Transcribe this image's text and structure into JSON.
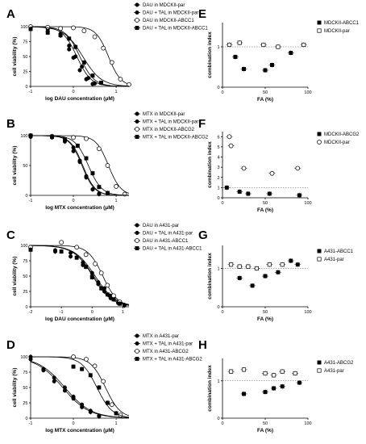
{
  "chart_data": [
    {
      "panel": "A",
      "type": "line",
      "xlabel": "log DAU concentration (μM)",
      "ylabel": "cell viability (%)",
      "xlim": [
        -1,
        1.3
      ],
      "ylim": [
        0,
        100
      ],
      "xticks": [
        "-1",
        "0",
        "1"
      ],
      "yticks": [
        "0",
        "25",
        "50",
        "75",
        "100"
      ],
      "legend": "top-right",
      "series": [
        {
          "name": "DAU in MDCKII-par",
          "marker": "filled-circle",
          "color": "#000000",
          "ic50": 0.15,
          "hill": 2.6,
          "x": [
            -1,
            -0.6,
            -0.3,
            -0.1,
            0.05,
            0.2,
            0.35,
            0.5
          ],
          "y": [
            100,
            96,
            88,
            68,
            50,
            33,
            14,
            5
          ]
        },
        {
          "name": "DAU + TAL in MDCKII-par",
          "marker": "filled-circle",
          "color": "#000000",
          "ic50": 0.08,
          "hill": 2.6,
          "x": [
            -1,
            -0.6,
            -0.3,
            -0.1,
            0.0,
            0.15,
            0.3,
            0.45
          ],
          "y": [
            98,
            92,
            85,
            62,
            48,
            27,
            12,
            4
          ]
        },
        {
          "name": "DAU in MDCKII-ABCC1",
          "marker": "open-circle",
          "color": "#000000",
          "ic50": 0.82,
          "hill": 3.0,
          "x": [
            -1,
            -0.6,
            -0.3,
            0.0,
            0.25,
            0.5,
            0.7,
            0.9,
            1.1,
            1.3
          ],
          "y": [
            100,
            99,
            97,
            98,
            93,
            83,
            64,
            40,
            12,
            3
          ]
        },
        {
          "name": "DAU + TAL in MDCKII-ABCC1",
          "marker": "filled-square",
          "color": "#000000",
          "ic50": 0.22,
          "hill": 2.0,
          "x": [
            -1,
            -0.6,
            -0.3,
            -0.1,
            0.05,
            0.25,
            0.45,
            0.65
          ],
          "y": [
            96,
            90,
            86,
            80,
            66,
            40,
            18,
            6
          ]
        }
      ]
    },
    {
      "panel": "B",
      "type": "line",
      "xlabel": "log MTX concentration (μM)",
      "ylabel": "cell viability (%)",
      "xlim": [
        -1,
        1.3
      ],
      "ylim": [
        0,
        100
      ],
      "xticks": [
        "-1",
        "0",
        "1"
      ],
      "yticks": [
        "0",
        "50",
        "100"
      ],
      "legend": "top-right",
      "series": [
        {
          "name": "MTX in MDCKII-par",
          "marker": "filled-circle",
          "color": "#000000",
          "ic50": 0.22,
          "hill": 3.0,
          "x": [
            -1,
            -0.5,
            -0.2,
            0.0,
            0.15,
            0.3,
            0.45,
            0.6
          ],
          "y": [
            100,
            98,
            92,
            80,
            58,
            32,
            10,
            3
          ]
        },
        {
          "name": "MTX + TAL in MDCKII-par",
          "marker": "filled-circle",
          "color": "#000000",
          "ic50": 0.2,
          "hill": 3.0,
          "x": [
            -1,
            -0.5,
            -0.2,
            0.0,
            0.15,
            0.3,
            0.45,
            0.6
          ],
          "y": [
            98,
            97,
            90,
            74,
            56,
            30,
            10,
            2
          ]
        },
        {
          "name": "MTX in MDCKII-ABCG2",
          "marker": "open-circle",
          "color": "#000000",
          "ic50": 0.82,
          "hill": 3.0,
          "x": [
            -1,
            -0.5,
            0.0,
            0.3,
            0.6,
            0.8,
            1.0,
            1.2
          ],
          "y": [
            100,
            99,
            97,
            95,
            78,
            50,
            15,
            2
          ]
        },
        {
          "name": "MTX + TAL in MDCKII-ABCG2",
          "marker": "filled-square",
          "color": "#000000",
          "ic50": 0.35,
          "hill": 2.8,
          "x": [
            -1,
            -0.5,
            -0.2,
            0.1,
            0.3,
            0.45,
            0.6,
            0.8
          ],
          "y": [
            100,
            98,
            94,
            83,
            62,
            37,
            14,
            4
          ]
        }
      ]
    },
    {
      "panel": "C",
      "type": "line",
      "xlabel": "log DAU concentration (μM)",
      "ylabel": "cell viability (%)",
      "xlim": [
        -2,
        1.2
      ],
      "ylim": [
        0,
        100
      ],
      "xticks": [
        "-2",
        "-1",
        "0",
        "1"
      ],
      "yticks": [
        "0",
        "25",
        "50",
        "75",
        "100"
      ],
      "legend": "top-right",
      "series": [
        {
          "name": "DAU in A431-par",
          "marker": "filled-circle",
          "color": "#000000",
          "ic50": 0.1,
          "hill": 1.3,
          "x": [
            -2,
            -1.2,
            -0.7,
            -0.3,
            0.0,
            0.2,
            0.4,
            0.6,
            0.85,
            1.05
          ],
          "y": [
            95,
            92,
            88,
            72,
            55,
            40,
            30,
            18,
            7,
            3
          ]
        },
        {
          "name": "DAU + TAL in A431-par",
          "marker": "filled-circle",
          "color": "#000000",
          "ic50": 0.05,
          "hill": 1.3,
          "x": [
            -2,
            -1.2,
            -0.7,
            -0.3,
            0.0,
            0.2,
            0.4,
            0.6,
            0.85,
            1.05
          ],
          "y": [
            96,
            90,
            82,
            68,
            50,
            37,
            25,
            14,
            6,
            2
          ]
        },
        {
          "name": "DAU in A431-ABCC1",
          "marker": "open-circle",
          "color": "#000000",
          "ic50": 0.35,
          "hill": 1.8,
          "x": [
            -2,
            -1.0,
            -0.5,
            -0.2,
            0.1,
            0.3,
            0.5,
            0.7,
            0.9
          ],
          "y": [
            97,
            105,
            97,
            85,
            70,
            55,
            35,
            18,
            8
          ]
        },
        {
          "name": "DAU + TAL in A431-ABCC1",
          "marker": "filled-square",
          "color": "#000000",
          "ic50": 0.02,
          "hill": 1.4,
          "x": [
            -2,
            -1.0,
            -0.5,
            -0.2,
            0.0,
            0.3,
            0.5,
            0.7,
            0.9
          ],
          "y": [
            93,
            90,
            80,
            65,
            48,
            30,
            20,
            12,
            5
          ]
        }
      ]
    },
    {
      "panel": "D",
      "type": "line",
      "xlabel": "log MTX concentration (μM)",
      "ylabel": "cell viability (%)",
      "xlim": [
        -1,
        1.3
      ],
      "ylim": [
        0,
        100
      ],
      "xticks": [
        "-1",
        "0",
        "1"
      ],
      "yticks": [
        "0",
        "25",
        "50",
        "75",
        "100"
      ],
      "legend": "top-right",
      "series": [
        {
          "name": "MTX in A431-par",
          "marker": "filled-circle",
          "color": "#000000",
          "ic50": -0.2,
          "hill": 1.4,
          "x": [
            -1,
            -0.7,
            -0.45,
            -0.2,
            0.0,
            0.2,
            0.4,
            0.6
          ],
          "y": [
            100,
            80,
            66,
            50,
            35,
            22,
            12,
            4
          ]
        },
        {
          "name": "MTX + TAL in A431-par",
          "marker": "filled-circle",
          "color": "#000000",
          "ic50": -0.25,
          "hill": 1.4,
          "x": [
            -1,
            -0.7,
            -0.45,
            -0.2,
            0.0,
            0.2,
            0.4,
            0.6
          ],
          "y": [
            96,
            78,
            60,
            45,
            32,
            18,
            10,
            3
          ]
        },
        {
          "name": "MTX in A431-ABCG2",
          "marker": "open-circle",
          "color": "#000000",
          "ic50": 0.75,
          "hill": 2.5,
          "x": [
            0.0,
            0.3,
            0.5,
            0.7,
            0.9,
            1.1
          ],
          "y": [
            100,
            96,
            85,
            60,
            22,
            5
          ]
        },
        {
          "name": "MTX + TAL in A431-ABCG2",
          "marker": "filled-square",
          "color": "#000000",
          "ic50": 0.55,
          "hill": 2.4,
          "x": [
            0.0,
            0.2,
            0.4,
            0.6,
            0.8,
            1.0
          ],
          "y": [
            84,
            80,
            70,
            50,
            25,
            8
          ]
        }
      ]
    },
    {
      "panel": "E",
      "type": "scatter",
      "xlabel": "FA (%)",
      "ylabel": "combination index",
      "xlim": [
        0,
        100
      ],
      "ylim": [
        0,
        1.6
      ],
      "xticks": [
        "0",
        "50",
        "100"
      ],
      "yticks": [
        "0",
        "1"
      ],
      "reference_line": 1,
      "legend": "top-right",
      "series": [
        {
          "name": "MDCKII-ABCC1",
          "marker": "filled-square",
          "color": "#000000",
          "x": [
            15,
            25,
            50,
            58,
            80
          ],
          "y": [
            0.75,
            0.45,
            0.42,
            0.55,
            0.85
          ]
        },
        {
          "name": "MDCKII-par",
          "marker": "open-square",
          "color": "#000000",
          "x": [
            8,
            20,
            48,
            65,
            95
          ],
          "y": [
            1.05,
            1.1,
            1.05,
            1.0,
            1.05
          ]
        }
      ]
    },
    {
      "panel": "F",
      "type": "scatter",
      "xlabel": "FA (%)",
      "ylabel": "combination index",
      "xlim": [
        0,
        100
      ],
      "ylim": [
        0,
        6.5
      ],
      "xticks": [
        "0",
        "50",
        "100"
      ],
      "yticks": [
        "0",
        "1",
        "2",
        "3",
        "4",
        "5",
        "6"
      ],
      "reference_line": 1,
      "legend": "top-right",
      "series": [
        {
          "name": "MDCKII-ABCG2",
          "marker": "filled-square",
          "color": "#000000",
          "x": [
            5,
            20,
            30,
            55,
            90
          ],
          "y": [
            1.0,
            0.6,
            0.4,
            0.4,
            0.25
          ]
        },
        {
          "name": "MDCKII-par",
          "marker": "open-circle",
          "color": "#000000",
          "x": [
            8,
            10,
            25,
            58,
            88
          ],
          "y": [
            6.0,
            5.1,
            2.9,
            2.4,
            2.9
          ]
        }
      ]
    },
    {
      "panel": "G",
      "type": "scatter",
      "xlabel": "FA (%)",
      "ylabel": "combination index",
      "xlim": [
        0,
        100
      ],
      "ylim": [
        0,
        1.6
      ],
      "xticks": [
        "0",
        "50",
        "100"
      ],
      "yticks": [
        "0",
        "1"
      ],
      "reference_line": 1,
      "legend": "top-right",
      "series": [
        {
          "name": "A431-ABCC1",
          "marker": "filled-square",
          "color": "#000000",
          "x": [
            20,
            35,
            50,
            65,
            80,
            88
          ],
          "y": [
            0.75,
            0.55,
            0.8,
            0.9,
            1.2,
            1.1
          ]
        },
        {
          "name": "A431-par",
          "marker": "open-square",
          "color": "#000000",
          "x": [
            10,
            20,
            30,
            40,
            55,
            70
          ],
          "y": [
            1.1,
            1.05,
            1.05,
            1.0,
            1.1,
            1.1
          ]
        }
      ]
    },
    {
      "panel": "H",
      "type": "scatter",
      "xlabel": "FA (%)",
      "ylabel": "combination index",
      "xlim": [
        0,
        100
      ],
      "ylim": [
        0,
        1.6
      ],
      "xticks": [
        "0",
        "50",
        "100"
      ],
      "yticks": [
        "0",
        "1"
      ],
      "reference_line": 1,
      "legend": "top-right",
      "series": [
        {
          "name": "A431-ABCG2",
          "marker": "filled-square",
          "color": "#000000",
          "x": [
            25,
            50,
            60,
            70,
            90
          ],
          "y": [
            0.65,
            0.7,
            0.8,
            0.85,
            0.95
          ]
        },
        {
          "name": "A431-par",
          "marker": "open-square",
          "color": "#000000",
          "x": [
            10,
            25,
            50,
            60,
            70,
            85
          ],
          "y": [
            1.25,
            1.3,
            1.2,
            1.15,
            1.25,
            1.2
          ]
        }
      ]
    }
  ]
}
